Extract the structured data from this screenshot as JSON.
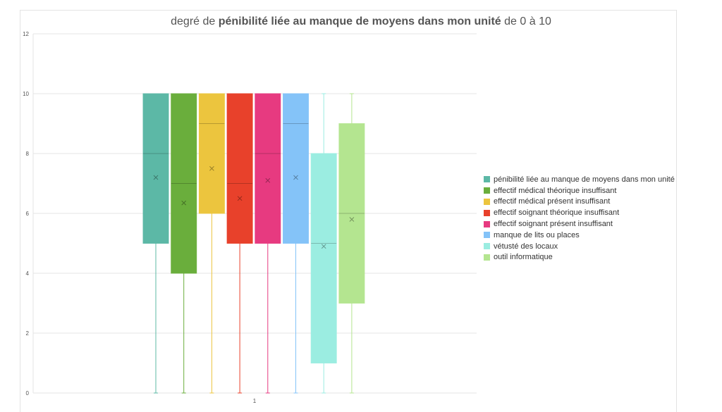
{
  "chart_data": {
    "type": "box",
    "title": {
      "prefix": "degré de ",
      "bold": "pénibilité liée au manque de moyens dans mon unité",
      "suffix": " de 0 à 10"
    },
    "categories": [
      "1"
    ],
    "ylim": [
      0,
      12
    ],
    "yticks": [
      "0",
      "2",
      "4",
      "6",
      "8",
      "10",
      "12"
    ],
    "grid": true,
    "legend_position": "right",
    "series": [
      {
        "name": "pénibilité liée au manque de moyens dans mon unité",
        "color": "#5cb8a6",
        "min": 0,
        "q1": 5,
        "median": 8,
        "q3": 10,
        "max": 10,
        "mean": 7.2
      },
      {
        "name": "effectif médical théorique insuffisant",
        "color": "#6aae3c",
        "min": 0,
        "q1": 4,
        "median": 7,
        "q3": 10,
        "max": 10,
        "mean": 6.35
      },
      {
        "name": "effectif médical présent insuffisant",
        "color": "#ecc53e",
        "min": 0,
        "q1": 6,
        "median": 9,
        "q3": 10,
        "max": 10,
        "mean": 7.5
      },
      {
        "name": "effectif soignant théorique insuffisant",
        "color": "#e8412b",
        "min": 0,
        "q1": 5,
        "median": 7,
        "q3": 10,
        "max": 10,
        "mean": 6.5
      },
      {
        "name": "effectif soignant présent insuffisant",
        "color": "#e73a80",
        "min": 0,
        "q1": 5,
        "median": 8,
        "q3": 10,
        "max": 10,
        "mean": 7.1
      },
      {
        "name": "manque de lits ou places",
        "color": "#84c3f8",
        "min": 0,
        "q1": 5,
        "median": 9,
        "q3": 10,
        "max": 10,
        "mean": 7.2
      },
      {
        "name": "vétusté des locaux",
        "color": "#9bede1",
        "min": 0,
        "q1": 1,
        "median": 5,
        "q3": 8,
        "max": 10,
        "mean": 4.9
      },
      {
        "name": "outil informatique",
        "color": "#b4e590",
        "min": 0,
        "q1": 3,
        "median": 6,
        "q3": 9,
        "max": 10,
        "mean": 5.8
      }
    ]
  }
}
